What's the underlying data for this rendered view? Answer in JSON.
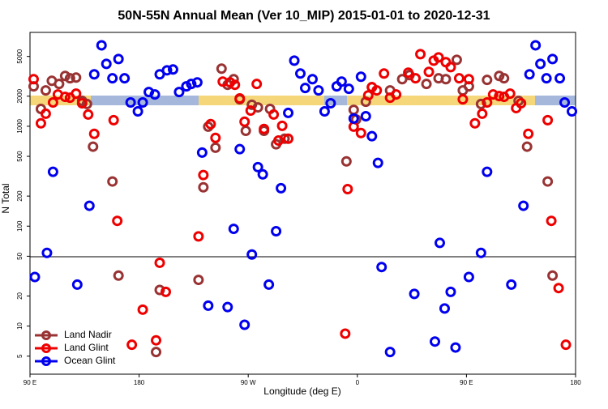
{
  "chart_data": {
    "type": "scatter",
    "title": "50N-55N Annual Mean (Ver 10_MIP)   2015-01-01 to 2020-12-31",
    "x_label": "Longitude (deg E)",
    "y_label": "N Total",
    "xlim": [
      90,
      540
    ],
    "xticks": [
      {
        "value": 90,
        "label": "90 E"
      },
      {
        "value": 180,
        "label": "180"
      },
      {
        "value": 270,
        "label": "90 W"
      },
      {
        "value": 360,
        "label": "0"
      },
      {
        "value": 450,
        "label": "90 E"
      },
      {
        "value": 540,
        "label": "180"
      }
    ],
    "ylim": [
      3.3,
      8700
    ],
    "yscale": "log",
    "yticks": [
      5,
      10,
      20,
      50,
      100,
      200,
      500,
      1000,
      2000,
      5000
    ],
    "legend": "lower left",
    "series": [
      {
        "name": "Land Nadir",
        "color": "#993333",
        "x": [
          93,
          99,
          103,
          108,
          114,
          119,
          123,
          128,
          133,
          137,
          142,
          158,
          163,
          194,
          197,
          229,
          233,
          237,
          243,
          248,
          253,
          258,
          263,
          268,
          273,
          278,
          283,
          288,
          293,
          300,
          351,
          357,
          359,
          367,
          372,
          387,
          397,
          403,
          417,
          427,
          433,
          442,
          447,
          452,
          462,
          467,
          477,
          481,
          493,
          500,
          517,
          521
        ],
        "values": [
          2510,
          1490,
          2285,
          2850,
          2650,
          3190,
          3020,
          3070,
          1795,
          1670,
          625,
          280,
          32,
          5.5,
          23,
          29,
          245,
          990,
          610,
          3770,
          2600,
          2960,
          1860,
          900,
          1640,
          1545,
          900,
          1490,
          660,
          750,
          445,
          1460,
          1170,
          1760,
          2460,
          2285,
          2960,
          3250,
          2650,
          3020,
          2960,
          4620,
          2285,
          2510,
          1670,
          2910,
          3190,
          3020,
          1795,
          625,
          280,
          32
        ]
      },
      {
        "name": "Land Glint",
        "color": "#ee0000",
        "x": [
          93,
          99,
          103,
          109,
          113,
          119,
          123,
          128,
          133,
          138,
          143,
          159,
          162,
          174,
          183,
          194,
          197,
          202,
          229,
          233,
          239,
          243,
          249,
          255,
          259,
          263,
          267,
          272,
          277,
          283,
          291,
          295,
          298,
          303,
          350,
          352,
          357,
          363,
          369,
          372,
          376,
          382,
          387,
          392,
          402,
          408,
          412,
          419,
          423,
          427,
          433,
          437,
          444,
          447,
          452,
          457,
          463,
          467,
          472,
          477,
          481,
          486,
          491,
          495,
          501,
          517,
          520,
          526,
          532
        ],
        "values": [
          2960,
          1070,
          1335,
          1730,
          2080,
          1970,
          1930,
          2120,
          1700,
          1310,
          840,
          1150,
          113,
          6.5,
          14.6,
          7.2,
          43,
          22,
          79,
          325,
          1050,
          765,
          2800,
          2750,
          2600,
          1900,
          1110,
          1435,
          2650,
          940,
          1310,
          720,
          1010,
          750,
          8.4,
          235,
          990,
          855,
          2040,
          2460,
          2285,
          3370,
          1930,
          2080,
          3440,
          3020,
          5270,
          3500,
          4540,
          4890,
          4380,
          3910,
          3020,
          1860,
          2960,
          1070,
          1335,
          1730,
          2080,
          2005,
          1970,
          2120,
          1520,
          1700,
          840,
          1150,
          113,
          24,
          6.5
        ]
      },
      {
        "name": "Ocean Glint",
        "color": "#0000ee",
        "x": [
          94,
          104,
          109,
          129,
          139,
          143,
          149,
          153,
          158,
          163,
          168,
          173,
          179,
          183,
          188,
          193,
          197,
          203,
          208,
          213,
          219,
          223,
          228,
          232,
          237,
          253,
          258,
          263,
          267,
          273,
          278,
          282,
          287,
          293,
          297,
          303,
          308,
          313,
          317,
          323,
          328,
          333,
          338,
          343,
          347,
          353,
          357,
          363,
          367,
          372,
          377,
          380,
          387,
          407,
          424,
          428,
          432,
          437,
          441,
          452,
          462,
          467,
          487,
          497,
          502,
          507,
          511,
          516,
          521,
          527,
          531,
          537
        ],
        "values": [
          31,
          54,
          350,
          26,
          160,
          3310,
          6460,
          4210,
          3020,
          4710,
          3020,
          1730,
          1410,
          1730,
          2200,
          2080,
          3310,
          3630,
          3700,
          2200,
          2510,
          2650,
          2750,
          545,
          16,
          15.5,
          94,
          590,
          10.3,
          52,
          390,
          330,
          26,
          89,
          240,
          1360,
          4540,
          3370,
          2415,
          2960,
          2285,
          1410,
          1700,
          2510,
          2800,
          2370,
          1195,
          3130,
          1260,
          795,
          430,
          39,
          5.5,
          21,
          7.0,
          68,
          15,
          22,
          6.1,
          31,
          54,
          350,
          26,
          160,
          3310,
          6460,
          4210,
          3020,
          4710,
          3020,
          1730,
          1410
        ]
      }
    ]
  }
}
